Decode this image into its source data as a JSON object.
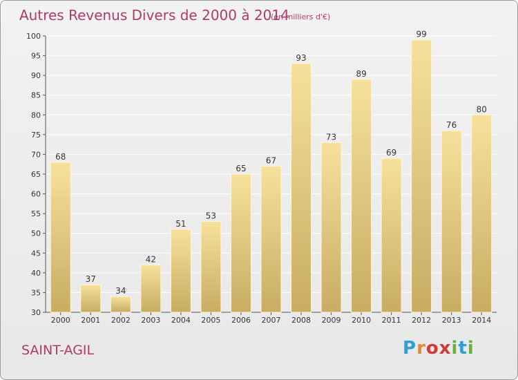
{
  "header": {
    "title": "Autres Revenus Divers de 2000 à 2014",
    "unit": "(en milliers d'€)"
  },
  "footer": {
    "place": "SAINT-AGIL",
    "logo": "Proxiti",
    "logo_letters": [
      "P",
      "r",
      "o",
      "x",
      "i",
      "t",
      "i"
    ]
  },
  "colors": {
    "title": "#b03a67",
    "bar_light": "#f6e19c",
    "bar_dark": "#c8ac62",
    "grid": "#ffffff",
    "axis": "#555555"
  },
  "chart_data": {
    "type": "bar",
    "title": "Autres Revenus Divers de 2000 à 2014",
    "categories": [
      "2000",
      "2001",
      "2002",
      "2003",
      "2004",
      "2005",
      "2006",
      "2007",
      "2008",
      "2009",
      "2010",
      "2011",
      "2012",
      "2013",
      "2014"
    ],
    "values": [
      68,
      37,
      34,
      42,
      51,
      53,
      65,
      67,
      93,
      73,
      89,
      69,
      99,
      76,
      80
    ],
    "data_labels": [
      "68",
      "37",
      "34",
      "42",
      "51",
      "53",
      "65",
      "67",
      "93",
      "73",
      "89",
      "69",
      "99",
      "76",
      "80"
    ],
    "ylim": [
      30,
      100
    ],
    "yticks": [
      "30",
      "35",
      "40",
      "45",
      "50",
      "55",
      "60",
      "65",
      "70",
      "75",
      "80",
      "85",
      "90",
      "95",
      "100"
    ],
    "grid": true
  }
}
